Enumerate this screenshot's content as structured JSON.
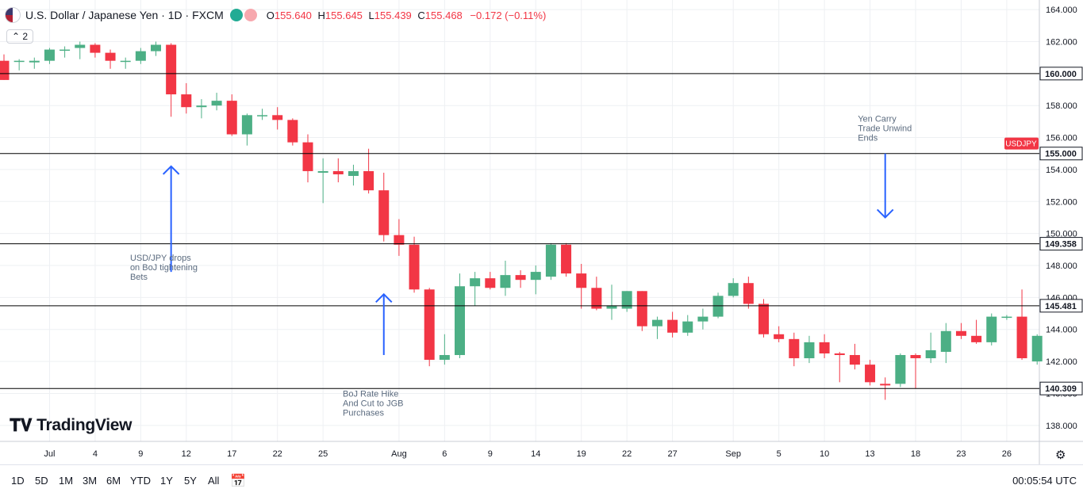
{
  "header": {
    "title": "U.S. Dollar / Japanese Yen · 1D · FXCM",
    "o_label": "O",
    "o": "155.640",
    "h_label": "H",
    "h": "155.645",
    "l_label": "L",
    "l": "155.439",
    "c_label": "C",
    "c": "155.468",
    "change": "−0.172 (−0.11%)",
    "indicator_count": "2"
  },
  "brand": "TradingView",
  "timeframes": [
    "1D",
    "5D",
    "1M",
    "3M",
    "6M",
    "YTD",
    "1Y",
    "5Y",
    "All"
  ],
  "clock": "00:05:54 UTC",
  "colors": {
    "up": "#4caf85",
    "down": "#f23645",
    "line": "#000000",
    "arrow": "#2962ff",
    "note": "#5b6b7f"
  },
  "chart_data": {
    "type": "candlestick",
    "symbol_label": "USDJPY",
    "ylim": [
      137,
      164.6
    ],
    "y_ticks": [
      138,
      140,
      142,
      144,
      146,
      148,
      150,
      152,
      154,
      156,
      158,
      160,
      162,
      164
    ],
    "y_tick_labels": [
      "138.000",
      "140.000",
      "142.000",
      "144.000",
      "146.000",
      "148.000",
      "150.000",
      "152.000",
      "154.000",
      "156.000",
      "158.000",
      "160.000",
      "162.000",
      "164.000"
    ],
    "x_labels": [
      {
        "label": "Jul",
        "index": 3
      },
      {
        "label": "4",
        "index": 6
      },
      {
        "label": "9",
        "index": 9
      },
      {
        "label": "12",
        "index": 12
      },
      {
        "label": "17",
        "index": 15
      },
      {
        "label": "22",
        "index": 18
      },
      {
        "label": "25",
        "index": 21
      },
      {
        "label": "Aug",
        "index": 26
      },
      {
        "label": "6",
        "index": 29
      },
      {
        "label": "9",
        "index": 32
      },
      {
        "label": "14",
        "index": 35
      },
      {
        "label": "19",
        "index": 38
      },
      {
        "label": "22",
        "index": 41
      },
      {
        "label": "27",
        "index": 44
      },
      {
        "label": "Sep",
        "index": 48
      },
      {
        "label": "5",
        "index": 51
      },
      {
        "label": "10",
        "index": 54
      },
      {
        "label": "13",
        "index": 57
      },
      {
        "label": "18",
        "index": 60
      },
      {
        "label": "23",
        "index": 63
      },
      {
        "label": "26",
        "index": 66
      }
    ],
    "candles": [
      [
        160.8,
        161.2,
        159.6,
        159.6
      ],
      [
        160.8,
        160.9,
        160.2,
        160.8
      ],
      [
        160.7,
        161.0,
        160.3,
        160.8
      ],
      [
        160.8,
        161.6,
        160.6,
        161.5
      ],
      [
        161.5,
        161.7,
        161.0,
        161.5
      ],
      [
        161.6,
        162.0,
        160.9,
        161.8
      ],
      [
        161.8,
        161.9,
        161.0,
        161.3
      ],
      [
        161.3,
        161.5,
        160.3,
        160.8
      ],
      [
        160.8,
        161.0,
        160.3,
        160.8
      ],
      [
        160.8,
        161.6,
        160.6,
        161.4
      ],
      [
        161.4,
        162.0,
        161.1,
        161.8
      ],
      [
        161.8,
        161.9,
        157.3,
        158.7
      ],
      [
        158.7,
        159.4,
        157.5,
        157.9
      ],
      [
        157.9,
        158.4,
        157.2,
        158.0
      ],
      [
        158.0,
        158.8,
        157.7,
        158.3
      ],
      [
        158.3,
        158.7,
        156.1,
        156.2
      ],
      [
        156.2,
        157.5,
        155.5,
        157.4
      ],
      [
        157.4,
        157.8,
        157.1,
        157.4
      ],
      [
        157.4,
        157.9,
        156.5,
        157.1
      ],
      [
        157.1,
        157.2,
        155.5,
        155.7
      ],
      [
        155.7,
        156.2,
        153.2,
        153.9
      ],
      [
        153.8,
        154.7,
        151.9,
        153.9
      ],
      [
        153.9,
        154.7,
        153.2,
        153.7
      ],
      [
        153.6,
        154.3,
        153.0,
        153.9
      ],
      [
        153.9,
        155.3,
        152.5,
        152.7
      ],
      [
        152.7,
        153.8,
        149.5,
        149.9
      ],
      [
        149.9,
        150.9,
        148.6,
        149.3
      ],
      [
        149.3,
        149.8,
        146.3,
        146.5
      ],
      [
        146.5,
        146.6,
        141.7,
        142.1
      ],
      [
        142.1,
        143.7,
        141.8,
        142.4
      ],
      [
        142.4,
        147.5,
        142.2,
        146.7
      ],
      [
        146.7,
        147.6,
        145.5,
        147.2
      ],
      [
        147.2,
        147.6,
        146.5,
        146.6
      ],
      [
        146.6,
        148.3,
        146.1,
        147.4
      ],
      [
        147.4,
        147.7,
        146.6,
        147.1
      ],
      [
        147.1,
        148.0,
        146.2,
        147.6
      ],
      [
        147.3,
        149.4,
        147.1,
        149.3
      ],
      [
        149.3,
        149.4,
        147.3,
        147.5
      ],
      [
        147.5,
        148.1,
        145.3,
        146.6
      ],
      [
        146.6,
        147.3,
        145.2,
        145.3
      ],
      [
        145.3,
        146.8,
        144.6,
        145.5
      ],
      [
        145.3,
        146.4,
        145.1,
        146.4
      ],
      [
        146.4,
        146.4,
        143.9,
        144.2
      ],
      [
        144.2,
        144.8,
        143.4,
        144.6
      ],
      [
        144.6,
        145.1,
        143.5,
        143.8
      ],
      [
        143.8,
        144.9,
        143.6,
        144.5
      ],
      [
        144.5,
        145.3,
        144.0,
        144.8
      ],
      [
        144.8,
        146.3,
        144.7,
        146.1
      ],
      [
        146.1,
        147.2,
        146.0,
        146.9
      ],
      [
        146.9,
        147.3,
        145.3,
        145.6
      ],
      [
        145.6,
        145.9,
        143.5,
        143.7
      ],
      [
        143.7,
        144.2,
        143.2,
        143.4
      ],
      [
        143.4,
        143.8,
        141.7,
        142.2
      ],
      [
        142.2,
        143.6,
        141.9,
        143.2
      ],
      [
        143.2,
        143.7,
        142.2,
        142.5
      ],
      [
        142.5,
        142.6,
        140.7,
        142.4
      ],
      [
        142.4,
        143.1,
        141.5,
        141.8
      ],
      [
        141.8,
        142.1,
        140.5,
        140.7
      ],
      [
        140.6,
        141.0,
        139.6,
        140.5
      ],
      [
        140.6,
        142.5,
        140.4,
        142.4
      ],
      [
        142.4,
        142.5,
        140.3,
        142.2
      ],
      [
        142.2,
        143.8,
        141.9,
        142.7
      ],
      [
        142.6,
        144.4,
        141.9,
        143.9
      ],
      [
        143.9,
        144.4,
        143.4,
        143.6
      ],
      [
        143.6,
        144.6,
        143.1,
        143.2
      ],
      [
        143.2,
        145.0,
        143.0,
        144.8
      ],
      [
        144.8,
        144.9,
        144.6,
        144.8
      ],
      [
        144.8,
        146.5,
        142.1,
        142.2
      ],
      [
        142.0,
        143.7,
        141.8,
        143.6
      ]
    ],
    "levels": [
      {
        "value": 160.0,
        "label": "160.000"
      },
      {
        "value": 155.0,
        "label": "155.000"
      },
      {
        "value": 149.358,
        "label": "149.358"
      },
      {
        "value": 145.481,
        "label": "145.481"
      },
      {
        "value": 140.309,
        "label": "140.309"
      }
    ],
    "annotations": [
      {
        "text": [
          "USD/JPY drops",
          "on BoJ tightening",
          "Bets"
        ],
        "arrow_index": 11,
        "arrow_from": 147.6,
        "arrow_to": 154.2,
        "text_index": 8.3,
        "text_y": 148.3
      },
      {
        "text": [
          "BoJ Rate Hike",
          "And Cut to JGB",
          "Purchases"
        ],
        "arrow_index": 25,
        "arrow_from": 142.4,
        "arrow_to": 146.2,
        "text_index": 22.3,
        "text_y": 139.8
      },
      {
        "text": [
          "Yen Carry",
          "Trade Unwind",
          "Ends"
        ],
        "arrow_index": 58,
        "arrow_from": 155.0,
        "arrow_to": 151.0,
        "text_index": 56.2,
        "text_y": 157.0
      }
    ]
  }
}
